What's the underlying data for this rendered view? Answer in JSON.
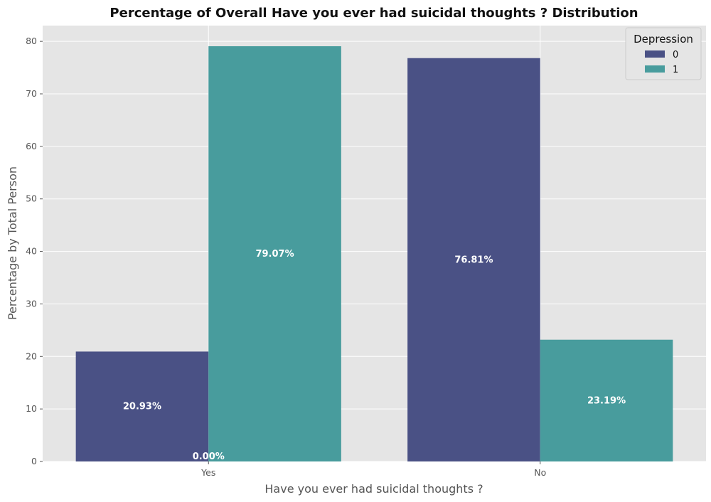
{
  "chart_data": {
    "type": "bar",
    "title": "Percentage of Overall Have you ever had suicidal thoughts ? Distribution",
    "xlabel": "Have you ever had suicidal thoughts ?",
    "ylabel": "Percentage by Total Person",
    "categories": [
      "Yes",
      "No"
    ],
    "ylim": [
      0,
      83
    ],
    "yticks": [
      0,
      10,
      20,
      30,
      40,
      50,
      60,
      70,
      80
    ],
    "grid": true,
    "legend": {
      "title": "Depression",
      "placement": "top-right"
    },
    "series": [
      {
        "name": "0",
        "color": "#4a5185",
        "values": [
          20.93,
          76.81
        ],
        "labels": [
          "20.93%",
          "76.81%"
        ]
      },
      {
        "name": "1",
        "color": "#489c9d",
        "values": [
          79.07,
          23.19
        ],
        "labels": [
          "79.07%",
          "23.19%"
        ]
      }
    ],
    "annotations": [
      {
        "text": "0.00%",
        "category": "Yes",
        "y": 0
      }
    ]
  }
}
